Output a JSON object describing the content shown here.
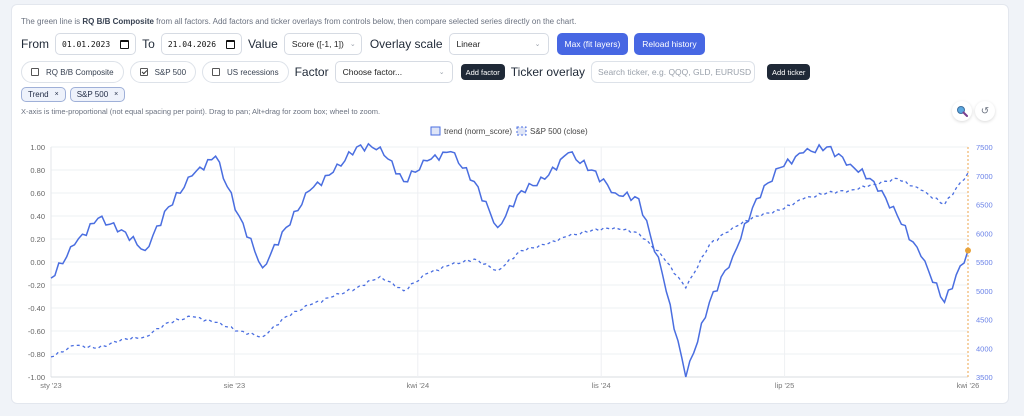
{
  "intro": {
    "prefix": "The green line is ",
    "bold": "RQ B/B Composite",
    "suffix": " from all factors. Add factors and ticker overlays from controls below, then compare selected series directly on the chart."
  },
  "controls": {
    "from_label": "From",
    "from_value": "01.01.2023",
    "to_label": "To",
    "to_value": "21.04.2026",
    "value_label": "Value",
    "value_selected": "Score ([-1, 1])",
    "overlay_scale_label": "Overlay scale",
    "overlay_scale_selected": "Linear",
    "max_button": "Max (fit layers)",
    "reload_button": "Reload history"
  },
  "toggles": [
    {
      "label": "RQ B/B Composite",
      "checked": false
    },
    {
      "label": "S&P 500",
      "checked": true
    },
    {
      "label": "US recessions",
      "checked": false
    }
  ],
  "factor": {
    "label": "Factor",
    "placeholder": "Choose factor...",
    "add_button": "Add factor"
  },
  "ticker": {
    "label": "Ticker overlay",
    "placeholder": "Search ticker, e.g. QQQ, GLD, EURUSD",
    "add_button": "Add ticker"
  },
  "chips": [
    {
      "label": "Trend",
      "close": "×"
    },
    {
      "label": "S&P 500",
      "close": "×"
    }
  ],
  "hint": "X-axis is time-proportional (not equal spacing per point). Drag to pan; Alt+drag for zoom box; wheel to zoom.",
  "icons": {
    "zoom": "magnifier-icon",
    "reset": "reset-icon"
  },
  "colors": {
    "primary": "#4767e3",
    "trend_line": "#4a6ee0",
    "sp500_line": "#4a6ee0",
    "marker": "#e8a33a",
    "dark_button": "#1f2937"
  },
  "chart_data": {
    "type": "line",
    "title": "",
    "legend": [
      "trend (norm_score)",
      "S&P 500 (close)"
    ],
    "legend_position": "top-center",
    "grid": true,
    "x_ticks": [
      "sty '23",
      "sie '23",
      "kwi '24",
      "lis '24",
      "lip '25",
      "kwi '26"
    ],
    "x_range": [
      "2023-01-01",
      "2026-04-21"
    ],
    "y_left": {
      "label": "",
      "ticks": [
        "1.00",
        "0.80",
        "0.60",
        "0.40",
        "0.20",
        "0.00",
        "-0.20",
        "-0.40",
        "-0.60",
        "-0.80",
        "-1.00"
      ],
      "range": [
        -1,
        1
      ]
    },
    "y_right": {
      "label": "",
      "ticks": [
        "7500",
        "7000",
        "6500",
        "6000",
        "5500",
        "5000",
        "4500",
        "4000",
        "3500"
      ],
      "range": [
        3500,
        7500
      ]
    },
    "x": [
      "2023-01",
      "2023-02",
      "2023-03",
      "2023-04",
      "2023-05",
      "2023-06",
      "2023-07",
      "2023-08",
      "2023-09",
      "2023-10",
      "2023-11",
      "2023-12",
      "2024-01",
      "2024-02",
      "2024-03",
      "2024-04",
      "2024-05",
      "2024-06",
      "2024-07",
      "2024-08",
      "2024-09",
      "2024-10",
      "2024-11",
      "2024-12",
      "2025-01",
      "2025-02",
      "2025-03",
      "2025-04",
      "2025-05",
      "2025-06",
      "2025-07",
      "2025-08",
      "2025-09",
      "2025-10",
      "2025-11",
      "2025-12",
      "2026-01",
      "2026-02",
      "2026-03",
      "2026-04"
    ],
    "series": [
      {
        "name": "trend (norm_score)",
        "axis": "left",
        "style": "solid",
        "values": [
          -0.14,
          0.15,
          0.38,
          0.28,
          0.1,
          0.48,
          0.75,
          0.92,
          0.4,
          -0.05,
          0.3,
          0.62,
          0.78,
          1.0,
          1.0,
          0.7,
          0.88,
          0.96,
          0.7,
          0.3,
          0.62,
          0.72,
          0.95,
          0.8,
          0.6,
          0.55,
          -0.1,
          -1.0,
          -0.35,
          0.05,
          0.55,
          0.82,
          0.95,
          1.0,
          0.85,
          0.7,
          0.4,
          0.05,
          -0.35,
          0.1
        ]
      },
      {
        "name": "S&P 500 (close)",
        "axis": "right",
        "style": "dashed",
        "values": [
          3850,
          4050,
          4000,
          4150,
          4200,
          4450,
          4550,
          4450,
          4300,
          4200,
          4550,
          4750,
          4900,
          5050,
          5250,
          5000,
          5300,
          5450,
          5550,
          5350,
          5700,
          5800,
          5950,
          6050,
          6100,
          6000,
          5600,
          5050,
          5800,
          6100,
          6300,
          6400,
          6600,
          6700,
          6750,
          6850,
          6950,
          6750,
          6500,
          7050
        ]
      }
    ],
    "marker": {
      "x": "2026-04-21",
      "value": 0.1,
      "color": "#e8a33a"
    }
  }
}
